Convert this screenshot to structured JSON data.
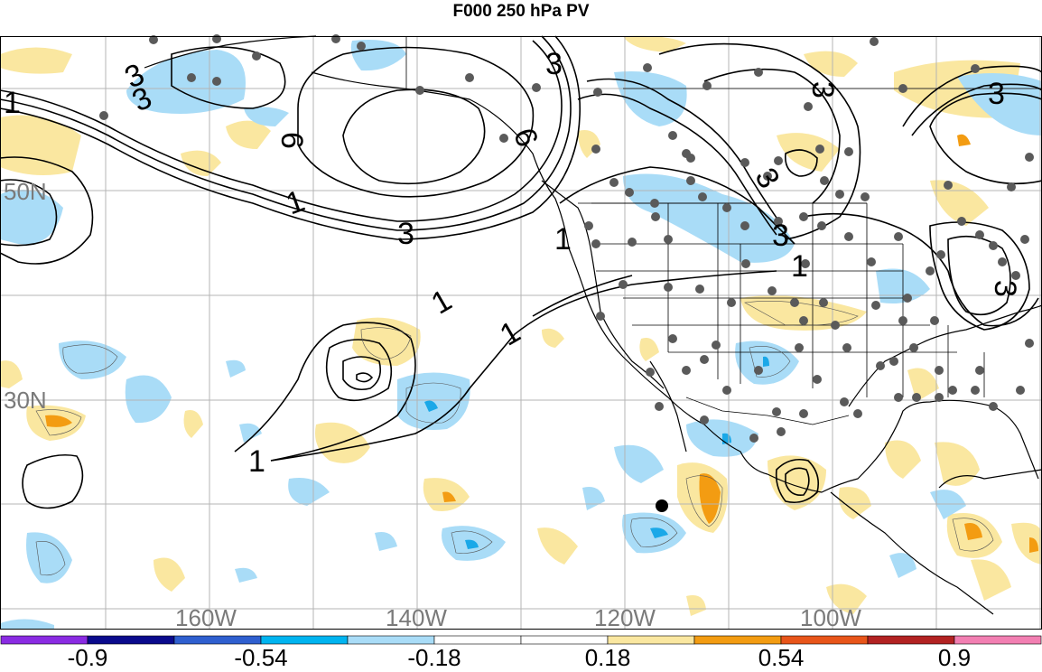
{
  "title": "F000 250 hPa PV",
  "map": {
    "longitude_labels": [
      "160W",
      "140W",
      "120W",
      "100W"
    ],
    "latitude_labels": [
      "50N",
      "30N"
    ],
    "contour_labels": [
      "1",
      "3",
      "6",
      "3",
      "6",
      "1",
      "3",
      "1",
      "1",
      "1",
      "3",
      "3",
      "3",
      "3",
      "3",
      "1",
      "3",
      "1"
    ],
    "colors": {
      "land_outline": "#000000",
      "grid": "#b4b4b4",
      "station": "#5a5a5a",
      "light_blue": "#a9dcf7",
      "blue": "#1aa8e8",
      "light_yellow": "#fae7a0",
      "orange": "#f39c12"
    }
  },
  "colorbar": {
    "segments": [
      {
        "color": "#8a2be2"
      },
      {
        "color": "#0a0a8c"
      },
      {
        "color": "#2f5fcf"
      },
      {
        "color": "#00b4f0"
      },
      {
        "color": "#a9dcf7"
      },
      {
        "color": "#ffffff"
      },
      {
        "color": "#ffffff"
      },
      {
        "color": "#fae7a0"
      },
      {
        "color": "#f39c12"
      },
      {
        "color": "#e8551a"
      },
      {
        "color": "#b22222"
      },
      {
        "color": "#f27fb2"
      }
    ],
    "tick_labels": [
      "-0.9",
      "-0.54",
      "-0.18",
      "0.18",
      "0.54",
      "0.9"
    ]
  }
}
